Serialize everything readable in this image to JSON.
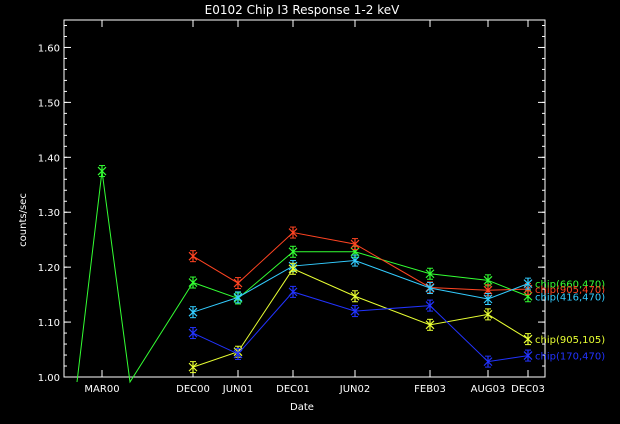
{
  "chart_data": {
    "type": "line",
    "title": "E0102 Chip I3 Response 1-2 keV",
    "xlabel": "Date",
    "ylabel": "counts/sec",
    "ylim": [
      1.0,
      1.65
    ],
    "yticks": [
      1.0,
      1.1,
      1.2,
      1.3,
      1.4,
      1.5,
      1.6
    ],
    "ytick_labels": [
      "1.00",
      "1.10",
      "1.20",
      "1.30",
      "1.40",
      "1.50",
      "1.60"
    ],
    "x": [
      "MAR00",
      "DEC00",
      "JUN01",
      "DEC01",
      "JUN02",
      "FEB03",
      "AUG03",
      "DEC03"
    ],
    "grid": false,
    "legend_placement": "right",
    "background": "#000000",
    "axis_color": "#ffffff",
    "series": [
      {
        "name": "chip(660,470)",
        "color": "#33ff33",
        "values": [
          1.375,
          1.172,
          1.143,
          1.228,
          1.228,
          1.188,
          1.176,
          1.147
        ],
        "yerr": 0.01,
        "notes": "line starts below the axis on both sides of MAR00"
      },
      {
        "name": "chip(905,470)",
        "color": "#ff4422",
        "values": [
          null,
          1.22,
          1.171,
          1.263,
          1.242,
          1.163,
          1.158,
          1.16
        ],
        "yerr": 0.01
      },
      {
        "name": "chip(416,470)",
        "color": "#33ccff",
        "values": [
          null,
          1.118,
          1.145,
          1.202,
          1.212,
          1.162,
          1.142,
          1.17
        ],
        "yerr": 0.01
      },
      {
        "name": "chip(905,105)",
        "color": "#e8ff33",
        "values": [
          null,
          1.018,
          1.046,
          1.197,
          1.147,
          1.095,
          1.114,
          1.069
        ],
        "yerr": 0.01
      },
      {
        "name": "chip(170,470)",
        "color": "#2233ff",
        "values": [
          null,
          1.08,
          1.042,
          1.155,
          1.12,
          1.13,
          1.028,
          1.039
        ],
        "yerr": 0.01
      }
    ]
  }
}
